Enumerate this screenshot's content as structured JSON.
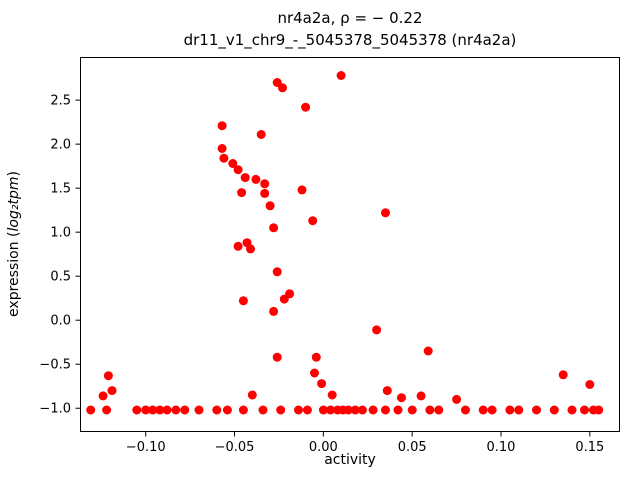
{
  "chart_data": {
    "type": "scatter",
    "title": "nr4a2a, ρ = − 0.22",
    "subtitle": "dr11_v1_chr9_-_5045378_5045378 (nr4a2a)",
    "xlabel": "activity",
    "ylabel": {
      "prefix": "expression (",
      "math": "log₂tpm",
      "suffix": ")"
    },
    "marker_color": "#ff0000",
    "axis_color": "#000000",
    "xlim": [
      -0.137,
      0.167
    ],
    "ylim": [
      -1.27,
      2.99
    ],
    "xticks": {
      "values": [
        -0.1,
        -0.05,
        0.0,
        0.05,
        0.1,
        0.15
      ],
      "labels": [
        "−0.10",
        "−0.05",
        "0.00",
        "0.05",
        "0.10",
        "0.15"
      ]
    },
    "yticks": {
      "values": [
        -1.0,
        -0.5,
        0.0,
        0.5,
        1.0,
        1.5,
        2.0,
        2.5
      ],
      "labels": [
        "−1.0",
        "−0.5",
        "0.0",
        "0.5",
        "1.0",
        "1.5",
        "2.0",
        "2.5"
      ]
    },
    "legend": null,
    "grid": false,
    "points": [
      [
        0.01,
        2.78
      ],
      [
        -0.026,
        2.7
      ],
      [
        -0.023,
        2.64
      ],
      [
        -0.01,
        2.42
      ],
      [
        -0.057,
        2.21
      ],
      [
        -0.035,
        2.11
      ],
      [
        -0.057,
        1.95
      ],
      [
        -0.056,
        1.84
      ],
      [
        -0.051,
        1.78
      ],
      [
        -0.048,
        1.71
      ],
      [
        -0.044,
        1.62
      ],
      [
        -0.038,
        1.6
      ],
      [
        -0.033,
        1.55
      ],
      [
        -0.046,
        1.45
      ],
      [
        -0.033,
        1.44
      ],
      [
        -0.012,
        1.48
      ],
      [
        -0.03,
        1.3
      ],
      [
        0.035,
        1.22
      ],
      [
        -0.006,
        1.13
      ],
      [
        -0.028,
        1.05
      ],
      [
        -0.043,
        0.88
      ],
      [
        -0.048,
        0.84
      ],
      [
        -0.041,
        0.81
      ],
      [
        -0.026,
        0.55
      ],
      [
        -0.019,
        0.3
      ],
      [
        -0.022,
        0.24
      ],
      [
        -0.045,
        0.22
      ],
      [
        -0.028,
        0.1
      ],
      [
        0.03,
        -0.11
      ],
      [
        -0.026,
        -0.42
      ],
      [
        -0.004,
        -0.42
      ],
      [
        0.059,
        -0.35
      ],
      [
        -0.121,
        -0.63
      ],
      [
        -0.005,
        -0.6
      ],
      [
        -0.001,
        -0.72
      ],
      [
        0.135,
        -0.62
      ],
      [
        0.15,
        -0.73
      ],
      [
        -0.119,
        -0.8
      ],
      [
        -0.124,
        -0.86
      ],
      [
        -0.04,
        -0.85
      ],
      [
        0.005,
        -0.85
      ],
      [
        0.036,
        -0.8
      ],
      [
        0.044,
        -0.88
      ],
      [
        0.055,
        -0.86
      ],
      [
        0.075,
        -0.9
      ],
      [
        -0.131,
        -1.02
      ],
      [
        -0.122,
        -1.02
      ],
      [
        -0.105,
        -1.02
      ],
      [
        -0.1,
        -1.02
      ],
      [
        -0.096,
        -1.02
      ],
      [
        -0.092,
        -1.02
      ],
      [
        -0.088,
        -1.02
      ],
      [
        -0.083,
        -1.02
      ],
      [
        -0.078,
        -1.02
      ],
      [
        -0.07,
        -1.02
      ],
      [
        -0.06,
        -1.02
      ],
      [
        -0.054,
        -1.02
      ],
      [
        -0.045,
        -1.02
      ],
      [
        -0.034,
        -1.02
      ],
      [
        -0.024,
        -1.02
      ],
      [
        -0.014,
        -1.02
      ],
      [
        -0.009,
        -1.02
      ],
      [
        0.0,
        -1.02
      ],
      [
        0.004,
        -1.02
      ],
      [
        0.008,
        -1.02
      ],
      [
        0.011,
        -1.02
      ],
      [
        0.014,
        -1.02
      ],
      [
        0.018,
        -1.02
      ],
      [
        0.022,
        -1.02
      ],
      [
        0.028,
        -1.02
      ],
      [
        0.035,
        -1.02
      ],
      [
        0.042,
        -1.02
      ],
      [
        0.05,
        -1.02
      ],
      [
        0.06,
        -1.02
      ],
      [
        0.065,
        -1.02
      ],
      [
        0.08,
        -1.02
      ],
      [
        0.09,
        -1.02
      ],
      [
        0.095,
        -1.02
      ],
      [
        0.105,
        -1.02
      ],
      [
        0.11,
        -1.02
      ],
      [
        0.12,
        -1.02
      ],
      [
        0.13,
        -1.02
      ],
      [
        0.14,
        -1.02
      ],
      [
        0.147,
        -1.02
      ],
      [
        0.152,
        -1.02
      ],
      [
        0.155,
        -1.02
      ]
    ]
  }
}
